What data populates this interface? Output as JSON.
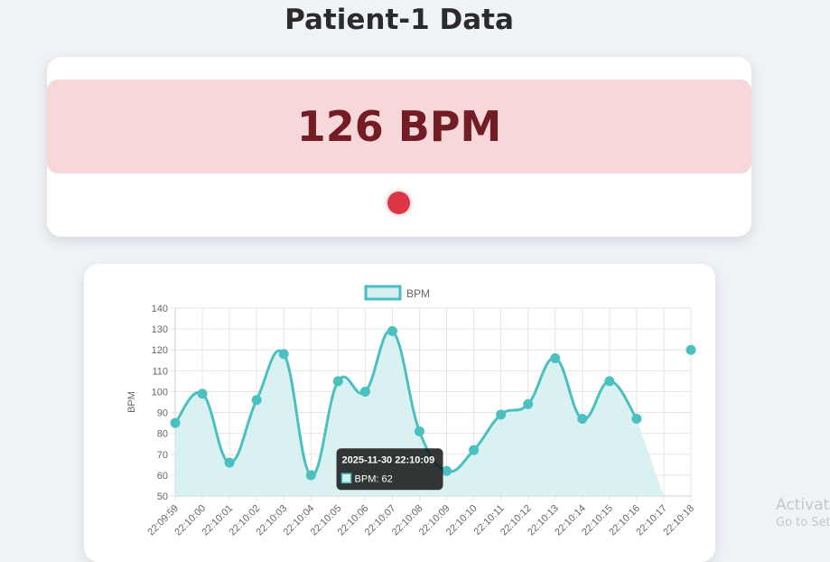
{
  "page": {
    "title": "Patient-1 Data"
  },
  "bpm_card": {
    "value_text": "126 BPM",
    "status_color": "#dc3545",
    "banner_color": "#f8d7da"
  },
  "chart_data": {
    "type": "line",
    "fill": true,
    "smooth": true,
    "line_color": "#4bc0c0",
    "fill_color": "#d6f0f0",
    "legend": {
      "position": "top",
      "entries": [
        "BPM"
      ]
    },
    "ylabel": "BPM",
    "xlabel": "",
    "ylim": [
      50,
      140
    ],
    "yticks": [
      50,
      60,
      70,
      80,
      90,
      100,
      110,
      120,
      130,
      140
    ],
    "grid": true,
    "categories": [
      "22:09:59",
      "22:10:00",
      "22:10:01",
      "22:10:02",
      "22:10:03",
      "22:10:04",
      "22:10:05",
      "22:10:06",
      "22:10:07",
      "22:10:08",
      "22:10:09",
      "22:10:10",
      "22:10:11",
      "22:10:12",
      "22:10:13",
      "22:10:14",
      "22:10:15",
      "22:10:16",
      "22:10:17",
      "22:10:18"
    ],
    "series": [
      {
        "name": "BPM",
        "values": [
          85,
          99,
          66,
          96,
          118,
          60,
          105,
          100,
          129,
          81,
          62,
          72,
          89,
          94,
          116,
          87,
          105,
          87,
          null,
          120
        ]
      }
    ],
    "tooltip": {
      "title": "2025-11-30 22:10:09",
      "body": "BPM: 62",
      "index": 10
    }
  },
  "watermark": {
    "line1": "Activat",
    "line2": "Go to Set"
  }
}
